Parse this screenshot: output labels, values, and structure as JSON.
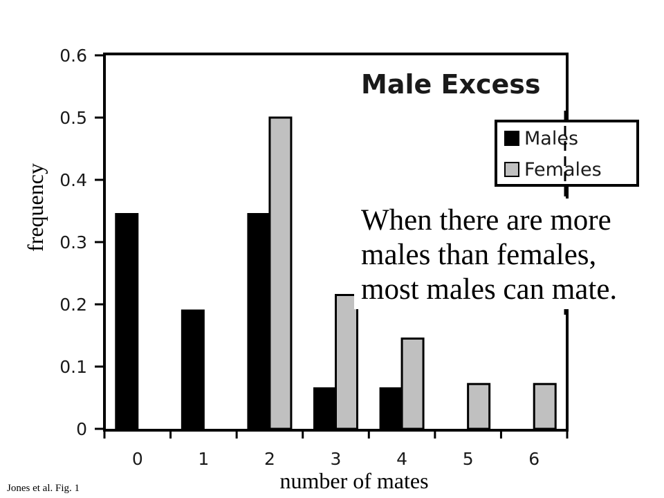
{
  "chart_data": {
    "type": "bar",
    "title": "Male Excess",
    "xlabel": "number of mates",
    "ylabel": "frequency",
    "categories": [
      "0",
      "1",
      "2",
      "3",
      "4",
      "5",
      "6"
    ],
    "series": [
      {
        "name": "Males",
        "values": [
          0.345,
          0.19,
          0.345,
          0.065,
          0.065,
          0,
          0
        ],
        "color": "#000000"
      },
      {
        "name": "Females",
        "values": [
          0,
          0,
          0.5,
          0.215,
          0.145,
          0.072,
          0.072
        ],
        "color": "#c0c0c0"
      }
    ],
    "yticks": [
      "0",
      "0.1",
      "0.2",
      "0.3",
      "0.4",
      "0.5",
      "0.6"
    ],
    "ylim": [
      0,
      0.6
    ],
    "grid": false,
    "legend_position": "top-right",
    "annotation": [
      "When there are more",
      "males than females,",
      "most males can mate."
    ],
    "source": "Jones et al. Fig. 1"
  }
}
